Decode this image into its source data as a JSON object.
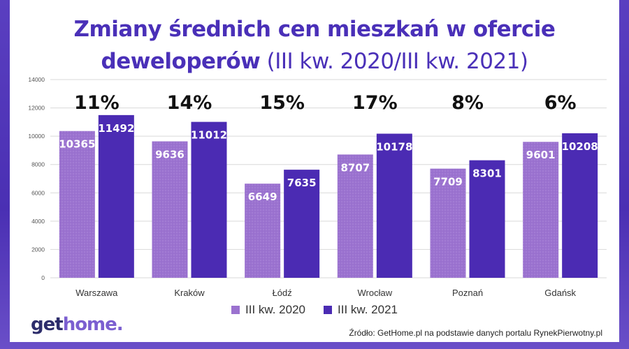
{
  "title": {
    "line1": "Zmiany średnich cen mieszkań w ofercie",
    "line2_bold": "deweloperów",
    "line2_light": " (III kw. 2020/III kw. 2021)"
  },
  "chart_data": {
    "type": "bar",
    "categories": [
      "Warszawa",
      "Kraków",
      "Łódź",
      "Wrocław",
      "Poznań",
      "Gdańsk"
    ],
    "series": [
      {
        "name": "III kw. 2020",
        "values": [
          10365,
          9636,
          6649,
          8707,
          7709,
          9601
        ],
        "color": "#9b72cf"
      },
      {
        "name": "III kw. 2021",
        "values": [
          11492,
          11012,
          7635,
          10178,
          8301,
          10208
        ],
        "color": "#4b2bb3"
      }
    ],
    "change_labels": [
      "11%",
      "14%",
      "15%",
      "17%",
      "8%",
      "6%"
    ],
    "ylim": [
      0,
      14000
    ],
    "yticks": [
      "0",
      "2000",
      "4000",
      "6000",
      "8000",
      "10000",
      "12000",
      "14000"
    ],
    "grid": true,
    "legend": "bottom"
  },
  "legend": {
    "items": [
      {
        "label": "III kw. 2020",
        "color": "#9b72cf"
      },
      {
        "label": "III kw. 2021",
        "color": "#4b2bb3"
      }
    ]
  },
  "logo": {
    "part1": "get",
    "part2": "home."
  },
  "source": "Źródło: GetHome.pl na podstawie danych portalu RynekPierwotny.pl"
}
